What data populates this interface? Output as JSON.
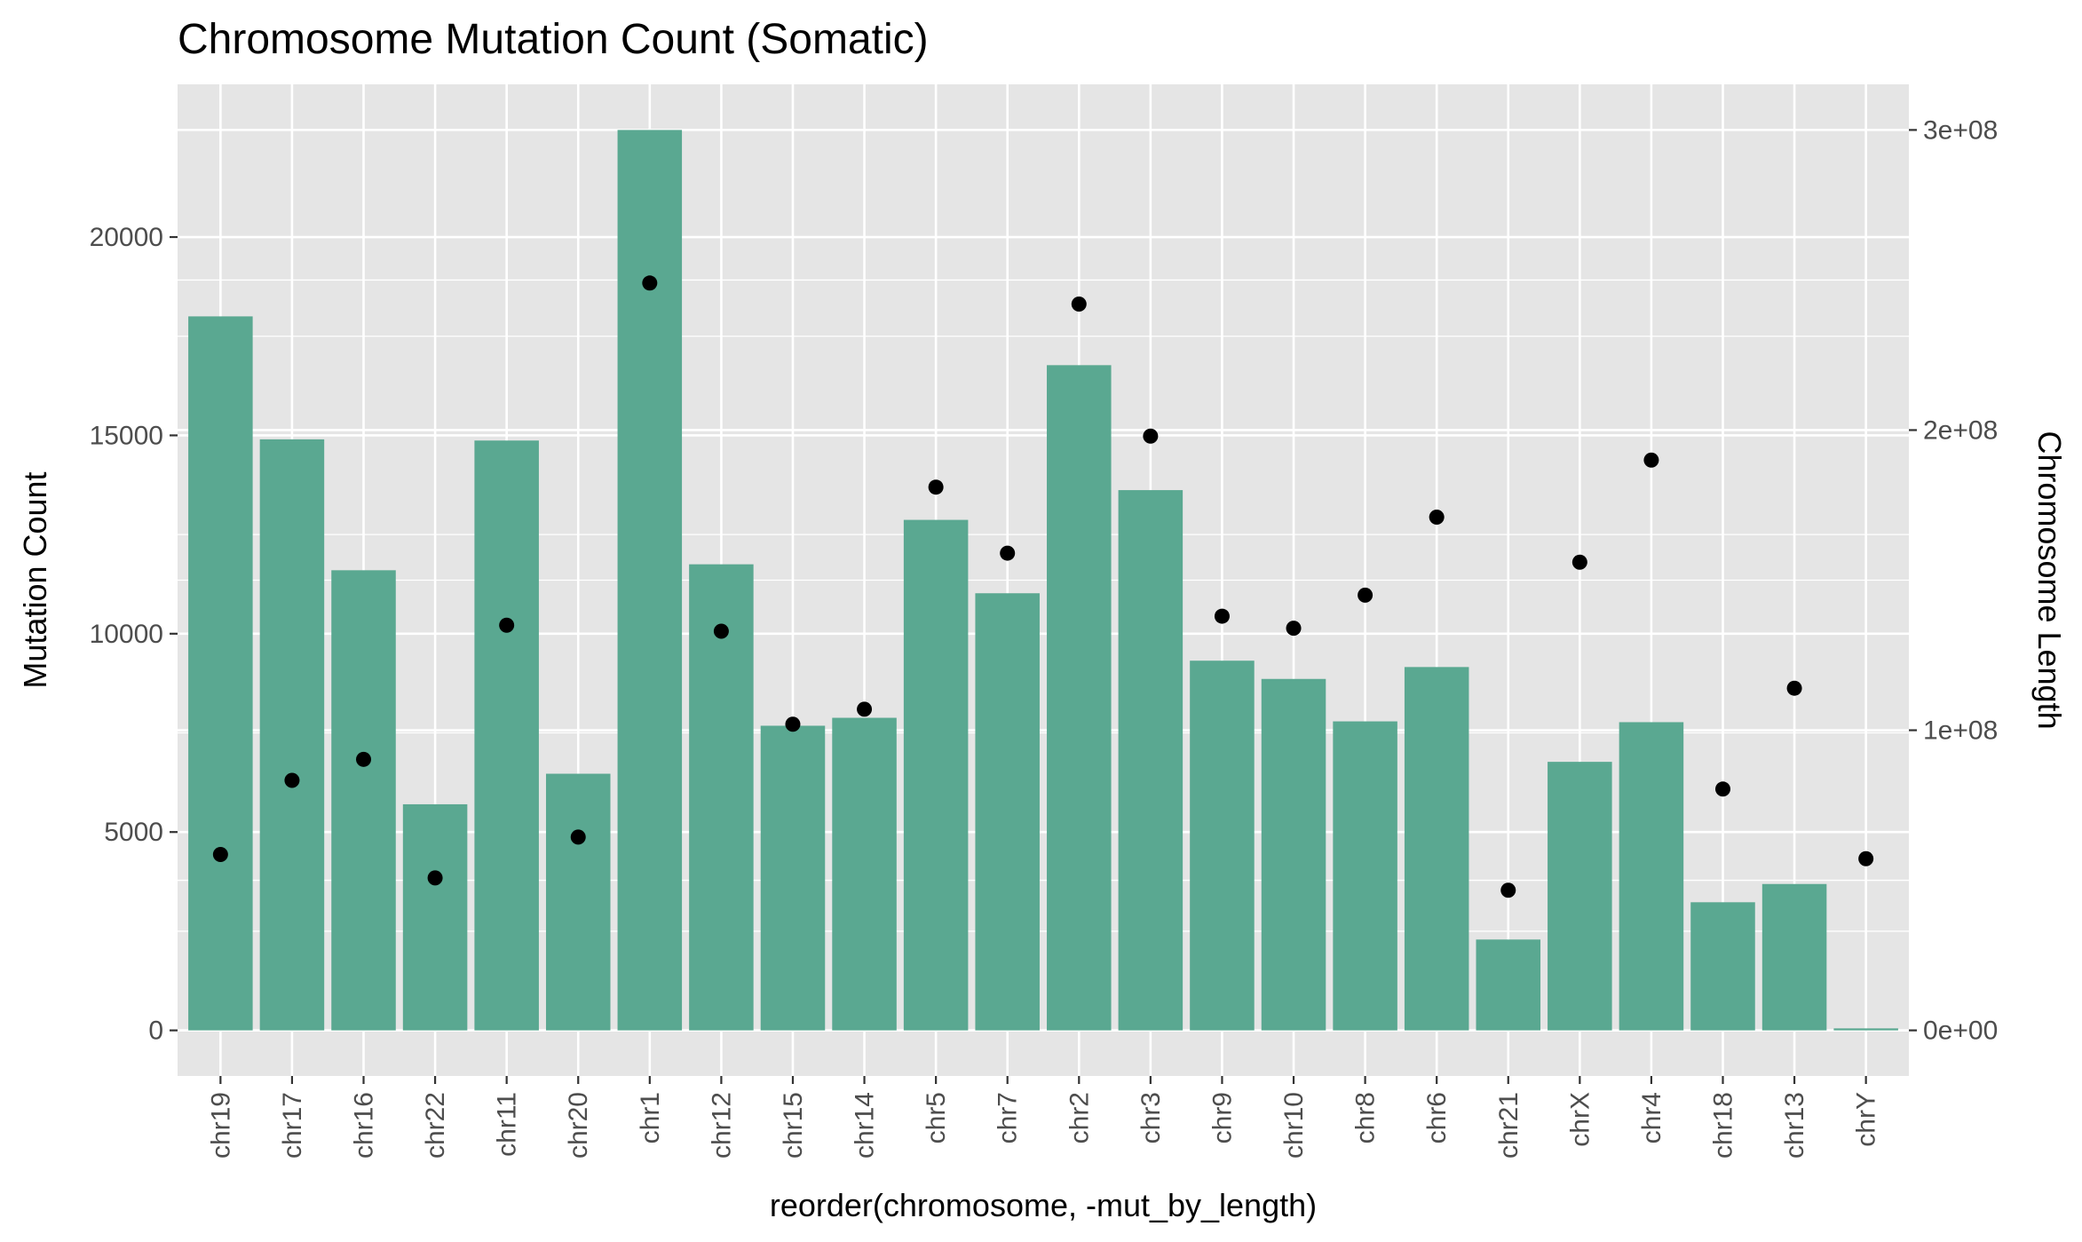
{
  "chart_data": {
    "type": "bar",
    "title": "Chromosome Mutation Count (Somatic)",
    "xlabel": "reorder(chromosome, -mut_by_length)",
    "ylabel": "Mutation Count",
    "y2label": "Chromosome Length",
    "categories": [
      "chr19",
      "chr17",
      "chr16",
      "chr22",
      "chr11",
      "chr20",
      "chr1",
      "chr12",
      "chr15",
      "chr14",
      "chr5",
      "chr7",
      "chr2",
      "chr3",
      "chr9",
      "chr10",
      "chr8",
      "chr6",
      "chr21",
      "chrX",
      "chr4",
      "chr18",
      "chr13",
      "chrY"
    ],
    "series": [
      {
        "name": "Mutation Count",
        "kind": "bar",
        "axis": "left",
        "values": [
          18000,
          14900,
          11600,
          5700,
          14870,
          6470,
          22700,
          11750,
          7680,
          7880,
          12870,
          11020,
          16770,
          13620,
          9320,
          8860,
          7790,
          9160,
          2290,
          6770,
          7770,
          3230,
          3690,
          50
        ]
      },
      {
        "name": "Chromosome Length",
        "kind": "point",
        "axis": "right",
        "values": [
          58600000,
          83300000,
          90300000,
          50800000,
          135000000,
          64400000,
          249000000,
          133000000,
          102000000,
          107000000,
          181000000,
          159000000,
          242000000,
          198000000,
          138000000,
          134000000,
          145000000,
          171000000,
          46700000,
          156000000,
          190000000,
          80400000,
          114000000,
          57200000
        ]
      }
    ],
    "ylim": [
      -1150,
      23850
    ],
    "y2lim": [
      -15200000,
      315200000
    ],
    "yticks": [
      0,
      5000,
      10000,
      15000,
      20000
    ],
    "yticks_minor": [
      2500,
      7500,
      12500,
      17500
    ],
    "y2ticks": [
      0,
      100000000,
      200000000,
      300000000
    ],
    "y2tick_labels": [
      "0e+00",
      "1e+08",
      "2e+08",
      "3e+08"
    ],
    "y2ticks_minor": [
      50000000,
      150000000,
      250000000
    ],
    "grid": true,
    "colors": {
      "bar": "#5aa891",
      "point": "#000000",
      "panel": "#e5e5e5",
      "grid": "#ffffff",
      "tick_text": "#4d4d4d",
      "tick": "#333333"
    }
  }
}
